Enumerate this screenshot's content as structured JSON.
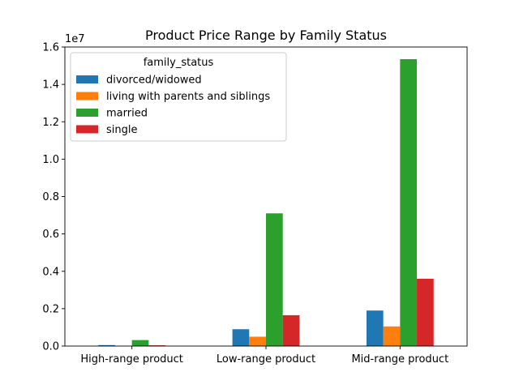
{
  "chart_data": {
    "type": "bar",
    "title": "Product Price Range by Family Status",
    "xlabel": "",
    "ylabel": "",
    "offset_label": "1e7",
    "categories": [
      "High-range product",
      "Low-range product",
      "Mid-range product"
    ],
    "ylim": [
      0,
      16000000
    ],
    "yticks": [
      0,
      2000000,
      4000000,
      6000000,
      8000000,
      10000000,
      12000000,
      14000000,
      16000000
    ],
    "ytick_labels": [
      "0.0",
      "0.2",
      "0.4",
      "0.6",
      "0.8",
      "1.0",
      "1.2",
      "1.4",
      "1.6"
    ],
    "grid": false,
    "legend": {
      "title": "family_status",
      "placement": "top-left"
    },
    "series": [
      {
        "name": "divorced/widowed",
        "color": "#1f77b4",
        "values": [
          50000,
          900000,
          1900000
        ]
      },
      {
        "name": "living with parents and siblings",
        "color": "#ff7f0e",
        "values": [
          10000,
          500000,
          1050000
        ]
      },
      {
        "name": "married",
        "color": "#2ca02c",
        "values": [
          320000,
          7100000,
          15350000
        ]
      },
      {
        "name": "single",
        "color": "#d62728",
        "values": [
          40000,
          1650000,
          3600000
        ]
      }
    ]
  }
}
